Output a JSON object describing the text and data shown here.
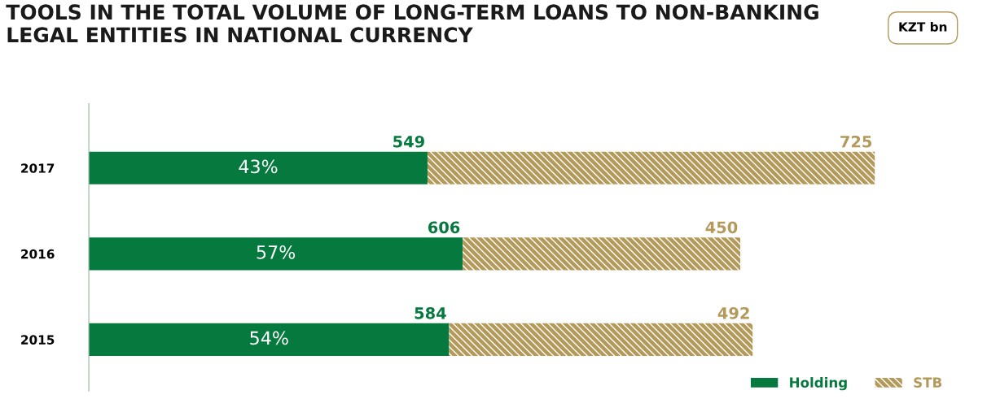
{
  "chart_data": {
    "type": "bar",
    "orientation": "horizontal",
    "stacked": true,
    "title": "TOOLS IN THE TOTAL VOLUME OF LONG-TERM LOANS TO NON-BANKING\nLEGAL ENTITIES IN NATIONAL CURRENCY",
    "categories": [
      "2017",
      "2016",
      "2015"
    ],
    "series": [
      {
        "name": "Holding",
        "color": "#067a3e",
        "values": [
          549,
          606,
          584
        ]
      },
      {
        "name": "STB",
        "color": "#b49a5a",
        "values": [
          725,
          450,
          492
        ]
      }
    ],
    "data_labels": true,
    "tick_labels": "y",
    "legend": "bottom right",
    "grid": false,
    "annotations": [
      "KZT bn",
      "43%",
      "57%",
      "54%"
    ]
  }
}
